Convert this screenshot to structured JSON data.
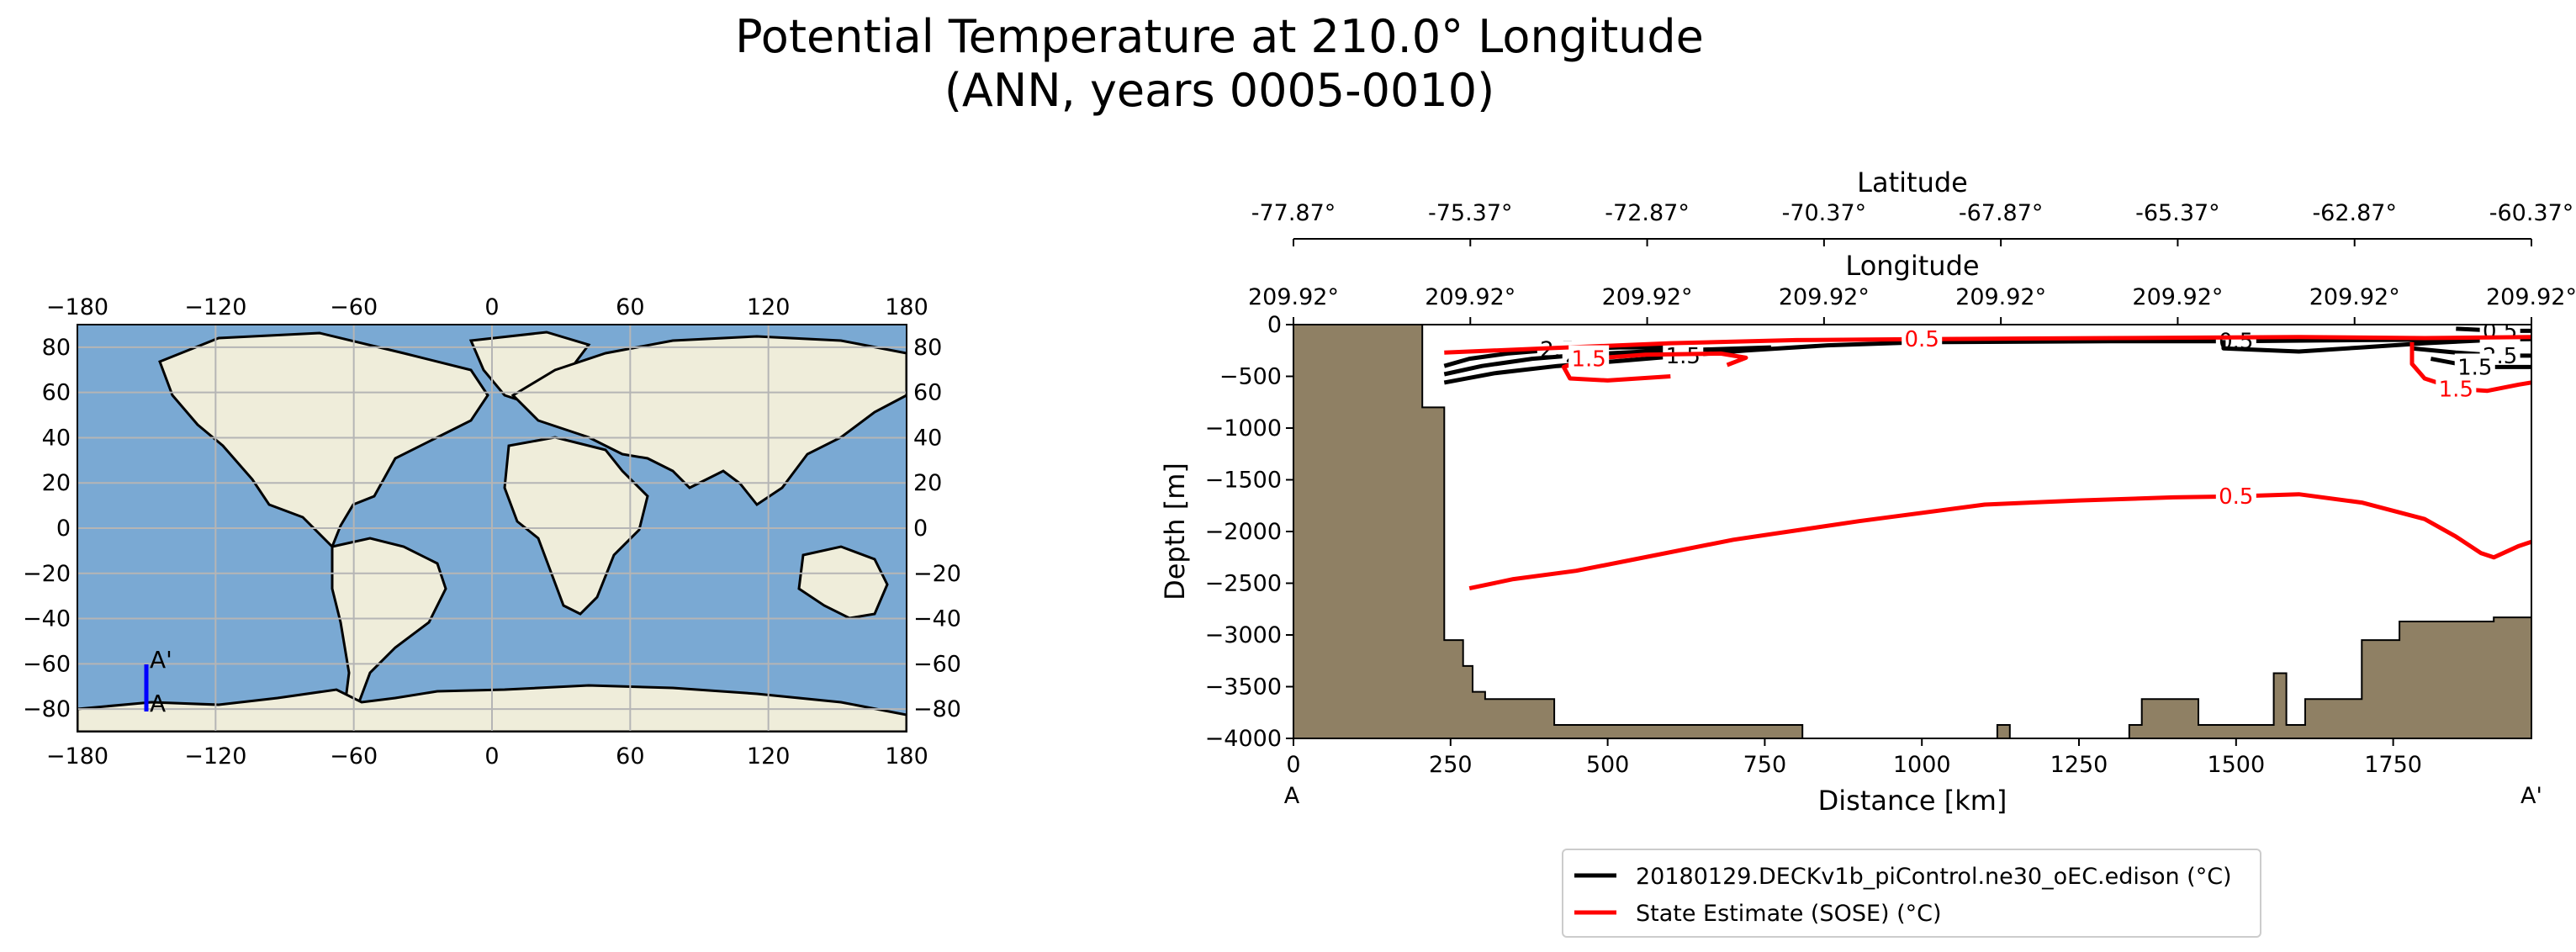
{
  "title_line1": "Potential Temperature at 210.0° Longitude",
  "title_line2": "(ANN, years 0005-0010)",
  "colors": {
    "ocean": "#7aa9d3",
    "land": "#efedda",
    "grid": "#b5b5b5",
    "transect": "#0000ff",
    "seafloor": "#8f8064",
    "model": "#000000",
    "obs": "#ff0000"
  },
  "map": {
    "xticks": [
      "−180",
      "−120",
      "−60",
      "0",
      "60",
      "120",
      "180"
    ],
    "yticks": [
      "80",
      "60",
      "40",
      "20",
      "0",
      "−20",
      "−40",
      "−60",
      "−80"
    ],
    "point_a": "A",
    "point_a_prime": "A'"
  },
  "section": {
    "top_axis_latitude_label": "Latitude",
    "latitude_ticks": [
      "-77.87°",
      "-75.37°",
      "-72.87°",
      "-70.37°",
      "-67.87°",
      "-65.37°",
      "-62.87°",
      "-60.37°"
    ],
    "top_axis_longitude_label": "Longitude",
    "longitude_ticks": [
      "209.92°",
      "209.92°",
      "209.92°",
      "209.92°",
      "209.92°",
      "209.92°",
      "209.92°",
      "209.92°"
    ],
    "left_label": "A",
    "right_label": "A'"
  },
  "chart_data": {
    "type": "line",
    "subtype": "contour-section",
    "xlabel": "Distance [km]",
    "ylabel": "Depth [m]",
    "xlim": [
      0,
      1970
    ],
    "ylim": [
      -4000,
      0
    ],
    "xticks": [
      0,
      250,
      500,
      750,
      1000,
      1250,
      1500,
      1750
    ],
    "yticks": [
      0,
      -500,
      -1000,
      -1500,
      -2000,
      -2500,
      -3000,
      -3500,
      -4000
    ],
    "xtick_labels": [
      "0",
      "250",
      "500",
      "750",
      "1000",
      "1250",
      "1500",
      "1750"
    ],
    "ytick_labels": [
      "0",
      "−500",
      "−1000",
      "−1500",
      "−2000",
      "−2500",
      "−3000",
      "−3500",
      "−4000"
    ],
    "legend_position": "bottom",
    "seafloor": [
      [
        0,
        0
      ],
      [
        205,
        0
      ],
      [
        205,
        -800
      ],
      [
        240,
        -800
      ],
      [
        240,
        -3050
      ],
      [
        270,
        -3050
      ],
      [
        270,
        -3300
      ],
      [
        285,
        -3300
      ],
      [
        285,
        -3550
      ],
      [
        305,
        -3550
      ],
      [
        305,
        -3620
      ],
      [
        415,
        -3620
      ],
      [
        415,
        -3870
      ],
      [
        810,
        -3870
      ],
      [
        810,
        -4000
      ],
      [
        1120,
        -4000
      ],
      [
        1120,
        -3870
      ],
      [
        1140,
        -3870
      ],
      [
        1140,
        -4000
      ],
      [
        1330,
        -4000
      ],
      [
        1330,
        -3870
      ],
      [
        1350,
        -3870
      ],
      [
        1350,
        -3620
      ],
      [
        1440,
        -3620
      ],
      [
        1440,
        -3870
      ],
      [
        1560,
        -3870
      ],
      [
        1560,
        -3370
      ],
      [
        1580,
        -3370
      ],
      [
        1580,
        -3870
      ],
      [
        1610,
        -3870
      ],
      [
        1610,
        -3620
      ],
      [
        1700,
        -3620
      ],
      [
        1700,
        -3050
      ],
      [
        1760,
        -3050
      ],
      [
        1760,
        -2870
      ],
      [
        1910,
        -2870
      ],
      [
        1910,
        -2830
      ],
      [
        1970,
        -2830
      ],
      [
        1970,
        -4000
      ],
      [
        0,
        -4000
      ]
    ],
    "series": [
      {
        "name": "20180129.DECKv1b_piControl.ne30_oEC.edison (°C)",
        "color": "#000000",
        "contours": [
          {
            "label": "2.5",
            "points": [
              [
                240,
                -400
              ],
              [
                280,
                -330
              ],
              [
                340,
                -280
              ],
              [
                420,
                -240
              ],
              [
                520,
                -220
              ],
              [
                600,
                -220
              ]
            ]
          },
          {
            "label": "2.5",
            "points": [
              [
                240,
                -480
              ],
              [
                300,
                -400
              ],
              [
                380,
                -330
              ],
              [
                460,
                -290
              ],
              [
                560,
                -260
              ],
              [
                660,
                -240
              ],
              [
                760,
                -220
              ]
            ]
          },
          {
            "label": "1.5",
            "points": [
              [
                240,
                -560
              ],
              [
                320,
                -470
              ],
              [
                420,
                -400
              ],
              [
                520,
                -350
              ],
              [
                620,
                -300
              ],
              [
                720,
                -250
              ],
              [
                850,
                -200
              ],
              [
                1000,
                -170
              ]
            ]
          },
          {
            "label": "0.5",
            "points": [
              [
                1000,
                -170
              ],
              [
                1300,
                -160
              ],
              [
                1500,
                -160
              ],
              [
                1700,
                -150
              ],
              [
                1970,
                -140
              ]
            ]
          },
          {
            "label": "",
            "points": [
              [
                1480,
                -150
              ],
              [
                1480,
                -230
              ],
              [
                1600,
                -260
              ],
              [
                1700,
                -220
              ],
              [
                1800,
                -180
              ],
              [
                1970,
                -130
              ]
            ]
          },
          {
            "label": "2.5",
            "points": [
              [
                1780,
                -230
              ],
              [
                1850,
                -270
              ],
              [
                1920,
                -300
              ],
              [
                1970,
                -300
              ]
            ]
          },
          {
            "label": "1.5",
            "points": [
              [
                1810,
                -330
              ],
              [
                1880,
                -410
              ],
              [
                1970,
                -410
              ]
            ]
          },
          {
            "label": "0.5",
            "points": [
              [
                1850,
                -40
              ],
              [
                1920,
                -60
              ],
              [
                1970,
                -60
              ]
            ]
          }
        ]
      },
      {
        "name": "State Estimate (SOSE) (°C)",
        "color": "#ff0000",
        "contours": [
          {
            "label": "0.5",
            "points": [
              [
                280,
                -2550
              ],
              [
                350,
                -2460
              ],
              [
                450,
                -2380
              ],
              [
                550,
                -2260
              ],
              [
                700,
                -2080
              ],
              [
                900,
                -1900
              ],
              [
                1100,
                -1740
              ],
              [
                1250,
                -1700
              ],
              [
                1400,
                -1670
              ],
              [
                1500,
                -1660
              ],
              [
                1600,
                -1640
              ],
              [
                1700,
                -1720
              ],
              [
                1800,
                -1880
              ],
              [
                1850,
                -2050
              ],
              [
                1890,
                -2210
              ],
              [
                1910,
                -2250
              ],
              [
                1950,
                -2140
              ],
              [
                1970,
                -2100
              ]
            ]
          },
          {
            "label": "0.5",
            "points": [
              [
                240,
                -270
              ],
              [
                400,
                -230
              ],
              [
                600,
                -180
              ],
              [
                800,
                -150
              ],
              [
                1000,
                -140
              ],
              [
                1300,
                -130
              ],
              [
                1600,
                -120
              ],
              [
                1800,
                -130
              ],
              [
                1970,
                -120
              ]
            ]
          },
          {
            "label": "1.5",
            "points": [
              [
                600,
                -500
              ],
              [
                500,
                -540
              ],
              [
                440,
                -520
              ],
              [
                430,
                -410
              ],
              [
                470,
                -330
              ],
              [
                560,
                -290
              ],
              [
                680,
                -280
              ],
              [
                720,
                -320
              ],
              [
                690,
                -390
              ]
            ]
          },
          {
            "label": "1.5",
            "points": [
              [
                1780,
                -170
              ],
              [
                1780,
                -380
              ],
              [
                1800,
                -520
              ],
              [
                1850,
                -620
              ],
              [
                1900,
                -640
              ],
              [
                1950,
                -580
              ],
              [
                1970,
                -560
              ]
            ]
          }
        ]
      }
    ]
  }
}
